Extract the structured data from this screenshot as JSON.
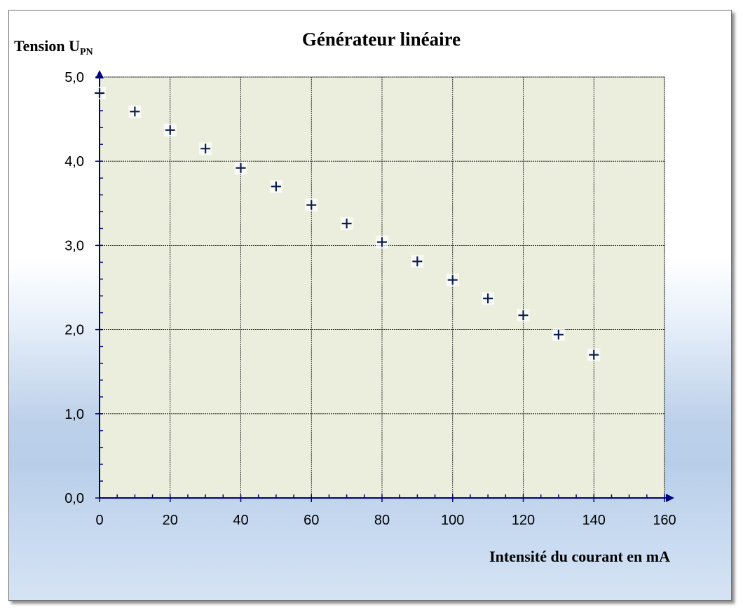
{
  "chart_data": {
    "type": "scatter",
    "title": "Générateur linéaire",
    "ylabel_main": "Tension U",
    "ylabel_sub": "PN",
    "xlabel": "Intensité du courant en mA",
    "xlim": [
      0,
      160
    ],
    "ylim": [
      0,
      5
    ],
    "x_ticks": [
      "0",
      "20",
      "40",
      "60",
      "80",
      "100",
      "120",
      "140",
      "160"
    ],
    "y_ticks": [
      "0,0",
      "1,0",
      "2,0",
      "3,0",
      "4,0",
      "5,0"
    ],
    "grid": true,
    "marker": "plus",
    "x": [
      0,
      10,
      20,
      30,
      40,
      50,
      60,
      70,
      80,
      90,
      100,
      110,
      120,
      130,
      140
    ],
    "y": [
      4.81,
      4.59,
      4.37,
      4.15,
      3.92,
      3.7,
      3.48,
      3.26,
      3.04,
      2.81,
      2.59,
      2.37,
      2.17,
      1.94,
      1.7
    ],
    "colors": {
      "plot_background": "#ebeedd",
      "axis": "#00007f",
      "marker": "#0d1e4e",
      "grid": "#000000"
    }
  }
}
